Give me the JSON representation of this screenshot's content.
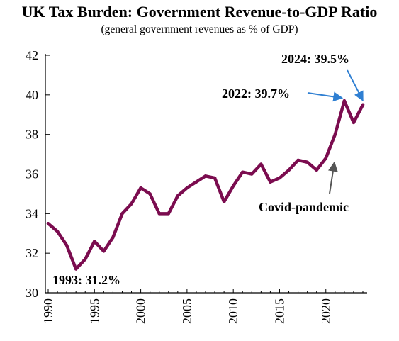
{
  "chart_data": {
    "type": "line",
    "title": "UK Tax Burden: Government Revenue-to-GDP Ratio",
    "subtitle": "(general government revenues as % of GDP)",
    "xlabel": "",
    "ylabel": "",
    "xlim": [
      1990,
      2024
    ],
    "ylim": [
      30,
      42
    ],
    "grid": false,
    "x_ticks": [
      1990,
      1995,
      2000,
      2005,
      2010,
      2015,
      2020
    ],
    "y_ticks": [
      30,
      32,
      34,
      36,
      38,
      40,
      42
    ],
    "series": [
      {
        "color": "#7b0c4f",
        "x": [
          1990,
          1991,
          1992,
          1993,
          1994,
          1995,
          1996,
          1997,
          1998,
          1999,
          2000,
          2001,
          2002,
          2003,
          2004,
          2005,
          2006,
          2007,
          2008,
          2009,
          2010,
          2011,
          2012,
          2013,
          2014,
          2015,
          2016,
          2017,
          2018,
          2019,
          2020,
          2021,
          2022,
          2023,
          2024
        ],
        "values": [
          33.5,
          33.1,
          32.4,
          31.2,
          31.7,
          32.6,
          32.1,
          32.8,
          34.0,
          34.5,
          35.3,
          35.0,
          34.0,
          34.0,
          34.9,
          35.3,
          35.6,
          35.9,
          35.8,
          34.6,
          35.4,
          36.1,
          36.0,
          36.5,
          35.6,
          35.8,
          36.2,
          36.7,
          36.6,
          36.2,
          36.8,
          38.0,
          39.7,
          38.6,
          39.5
        ]
      }
    ],
    "annotations": [
      {
        "text": "1993: 31.2%",
        "x": 1993,
        "y": 31.2
      },
      {
        "text": "2022: 39.7%",
        "x": 2022,
        "y": 39.7,
        "arrow_color": "#2f7fd2"
      },
      {
        "text": "2024: 39.5%",
        "x": 2024,
        "y": 39.5,
        "arrow_color": "#2f7fd2"
      },
      {
        "text": "Covid-pandemic",
        "x": 2021,
        "y": 36.8,
        "arrow_color": "#555555"
      }
    ]
  },
  "colors": {
    "line": "#7b0c4f",
    "axis": "#000000",
    "arrow_blue": "#2f7fd2",
    "arrow_gray": "#555555"
  }
}
